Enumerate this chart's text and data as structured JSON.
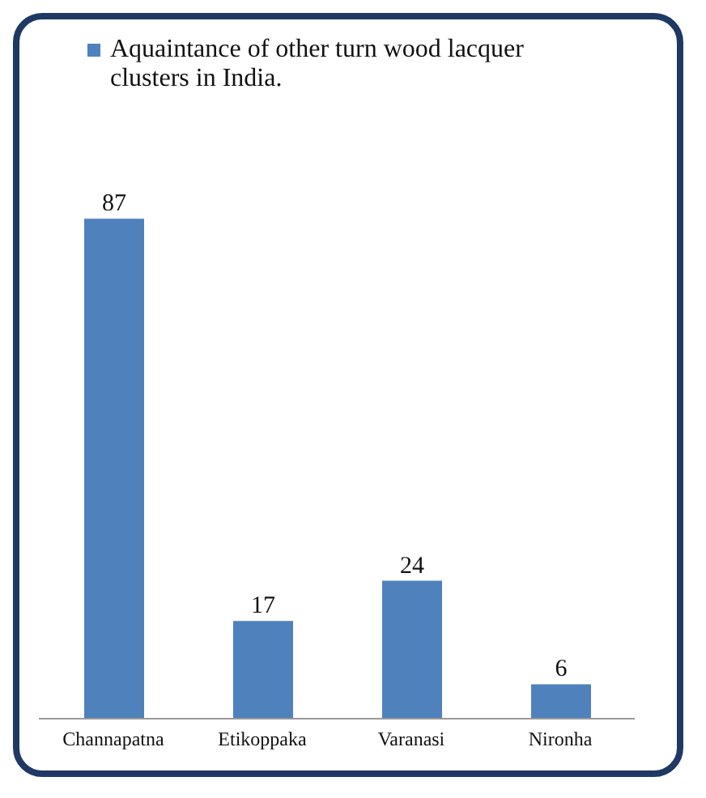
{
  "chart_data": {
    "type": "bar",
    "categories": [
      "Channapatna",
      "Etikoppaka",
      "Varanasi",
      "Nironha"
    ],
    "series": [
      {
        "name": "Aquaintance of other turn wood lacquer clusters in India.",
        "color": "#4f81bd",
        "values": [
          87,
          17,
          24,
          6
        ]
      }
    ],
    "data_labels": true,
    "legend": "top left"
  }
}
